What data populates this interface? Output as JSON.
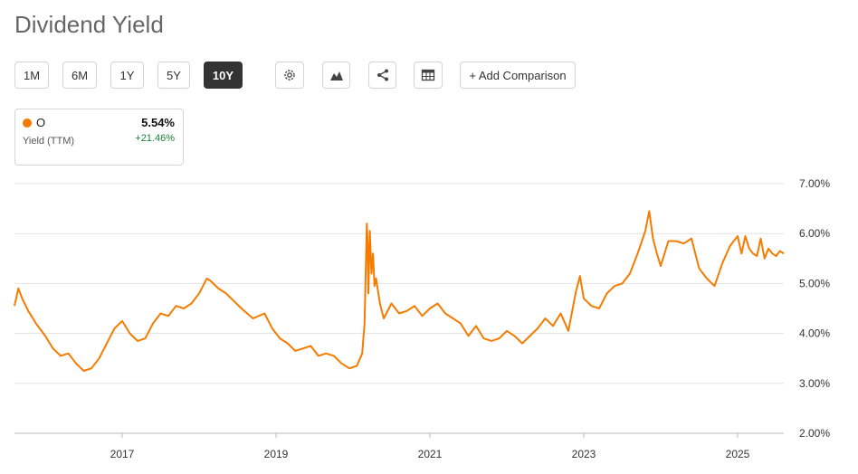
{
  "title": "Dividend Yield",
  "range_buttons": [
    {
      "label": "1M",
      "active": false
    },
    {
      "label": "6M",
      "active": false
    },
    {
      "label": "1Y",
      "active": false
    },
    {
      "label": "5Y",
      "active": false
    },
    {
      "label": "10Y",
      "active": true
    }
  ],
  "tool_icons": [
    "gear-icon",
    "chart-type-icon",
    "share-icon",
    "table-icon"
  ],
  "add_comparison_label": "+ Add Comparison",
  "legend": {
    "ticker": "O",
    "metric": "Yield (TTM)",
    "value": "5.54%",
    "change": "+21.46%",
    "color": "#f57c00",
    "change_color": "#1a7f37"
  },
  "chart_data": {
    "type": "line",
    "title": "",
    "xlabel": "",
    "ylabel": "",
    "xlim": [
      2015.6,
      2025.6
    ],
    "ylim": [
      2.0,
      7.0
    ],
    "x_ticks": [
      2017,
      2019,
      2021,
      2023,
      2025
    ],
    "x_tick_labels": [
      "2017",
      "2019",
      "2021",
      "2023",
      "2025"
    ],
    "y_ticks": [
      2.0,
      3.0,
      4.0,
      5.0,
      6.0,
      7.0
    ],
    "y_tick_labels": [
      "2.00%",
      "3.00%",
      "4.00%",
      "5.00%",
      "6.00%",
      "7.00%"
    ],
    "grid": "horizontal",
    "series": [
      {
        "name": "O",
        "color": "#f57c00",
        "x": [
          2015.6,
          2015.65,
          2015.7,
          2015.78,
          2015.88,
          2016.0,
          2016.1,
          2016.2,
          2016.3,
          2016.4,
          2016.5,
          2016.6,
          2016.7,
          2016.8,
          2016.9,
          2017.0,
          2017.1,
          2017.2,
          2017.3,
          2017.4,
          2017.5,
          2017.6,
          2017.7,
          2017.8,
          2017.9,
          2018.0,
          2018.1,
          2018.15,
          2018.25,
          2018.35,
          2018.45,
          2018.55,
          2018.7,
          2018.85,
          2018.95,
          2019.05,
          2019.15,
          2019.25,
          2019.35,
          2019.45,
          2019.55,
          2019.65,
          2019.75,
          2019.85,
          2019.95,
          2020.05,
          2020.12,
          2020.15,
          2020.18,
          2020.19,
          2020.2,
          2020.22,
          2020.24,
          2020.26,
          2020.28,
          2020.3,
          2020.35,
          2020.4,
          2020.5,
          2020.6,
          2020.7,
          2020.8,
          2020.9,
          2021.0,
          2021.1,
          2021.2,
          2021.3,
          2021.4,
          2021.5,
          2021.6,
          2021.7,
          2021.8,
          2021.9,
          2022.0,
          2022.1,
          2022.2,
          2022.3,
          2022.4,
          2022.5,
          2022.6,
          2022.7,
          2022.8,
          2022.9,
          2022.95,
          2023.0,
          2023.1,
          2023.2,
          2023.3,
          2023.4,
          2023.5,
          2023.6,
          2023.7,
          2023.8,
          2023.85,
          2023.9,
          2023.95,
          2024.0,
          2024.1,
          2024.2,
          2024.3,
          2024.4,
          2024.5,
          2024.6,
          2024.7,
          2024.8,
          2024.9,
          2025.0,
          2025.05,
          2025.1,
          2025.15,
          2025.2,
          2025.25,
          2025.3,
          2025.35,
          2025.4,
          2025.45,
          2025.5,
          2025.55,
          2025.6
        ],
        "y": [
          4.55,
          4.9,
          4.7,
          4.45,
          4.2,
          3.95,
          3.7,
          3.55,
          3.6,
          3.4,
          3.25,
          3.3,
          3.5,
          3.8,
          4.1,
          4.25,
          4.0,
          3.85,
          3.9,
          4.2,
          4.4,
          4.35,
          4.55,
          4.5,
          4.6,
          4.8,
          5.1,
          5.05,
          4.9,
          4.8,
          4.65,
          4.5,
          4.3,
          4.4,
          4.1,
          3.9,
          3.8,
          3.65,
          3.7,
          3.75,
          3.55,
          3.6,
          3.55,
          3.4,
          3.3,
          3.35,
          3.6,
          4.2,
          6.2,
          5.8,
          4.8,
          6.05,
          5.2,
          5.6,
          4.95,
          5.1,
          4.6,
          4.3,
          4.6,
          4.4,
          4.45,
          4.55,
          4.35,
          4.5,
          4.6,
          4.4,
          4.3,
          4.2,
          3.95,
          4.15,
          3.9,
          3.85,
          3.9,
          4.05,
          3.95,
          3.8,
          3.95,
          4.1,
          4.3,
          4.15,
          4.4,
          4.05,
          4.85,
          5.15,
          4.7,
          4.55,
          4.5,
          4.8,
          4.95,
          5.0,
          5.2,
          5.6,
          6.05,
          6.45,
          5.9,
          5.6,
          5.35,
          5.85,
          5.85,
          5.8,
          5.9,
          5.3,
          5.1,
          4.95,
          5.4,
          5.75,
          5.95,
          5.6,
          5.95,
          5.7,
          5.6,
          5.55,
          5.9,
          5.5,
          5.7,
          5.6,
          5.55,
          5.65,
          5.6
        ]
      }
    ]
  }
}
